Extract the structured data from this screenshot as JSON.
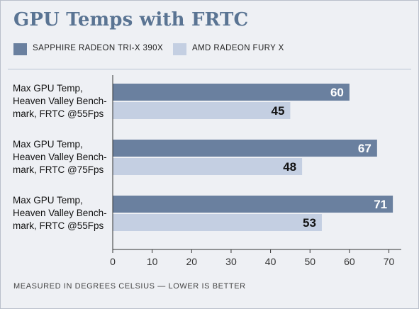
{
  "chart_data": {
    "type": "bar",
    "orientation": "horizontal",
    "title": "GPU Temps with FRTC",
    "categories": [
      "Max GPU Temp, Heaven Valley Bench-mark, FRTC @55Fps",
      "Max GPU Temp, Heaven Valley Bench-mark, FRTC @75Fps",
      "Max GPU Temp, Heaven Valley Bench-mark, FRTC @55Fps"
    ],
    "category_lines": [
      [
        "Max GPU Temp,",
        "Heaven Valley Bench-",
        "mark, FRTC @55Fps"
      ],
      [
        "Max GPU Temp,",
        "Heaven Valley Bench-",
        "mark, FRTC @75Fps"
      ],
      [
        "Max GPU Temp,",
        "Heaven Valley Bench-",
        "mark, FRTC @55Fps"
      ]
    ],
    "series": [
      {
        "name": "SAPPHIRE RADEON TRI-X 390X",
        "values": [
          60,
          67,
          71
        ],
        "color": "#6a809f",
        "label_color": "#ffffff"
      },
      {
        "name": "AMD RADEON FURY X",
        "values": [
          45,
          48,
          53
        ],
        "color": "#c4cfe2",
        "label_color": "#111111"
      }
    ],
    "xlim": [
      0,
      70
    ],
    "xticks": [
      0,
      10,
      20,
      30,
      40,
      50,
      60,
      70
    ],
    "xlabel": "",
    "ylabel": "",
    "grid": false,
    "legend_position": "top-left",
    "footnote": "MEASURED IN DEGREES CELSIUS — LOWER IS BETTER"
  },
  "colors": {
    "title": "#5a7493",
    "background": "#eef0f4",
    "axis": "#333333"
  }
}
